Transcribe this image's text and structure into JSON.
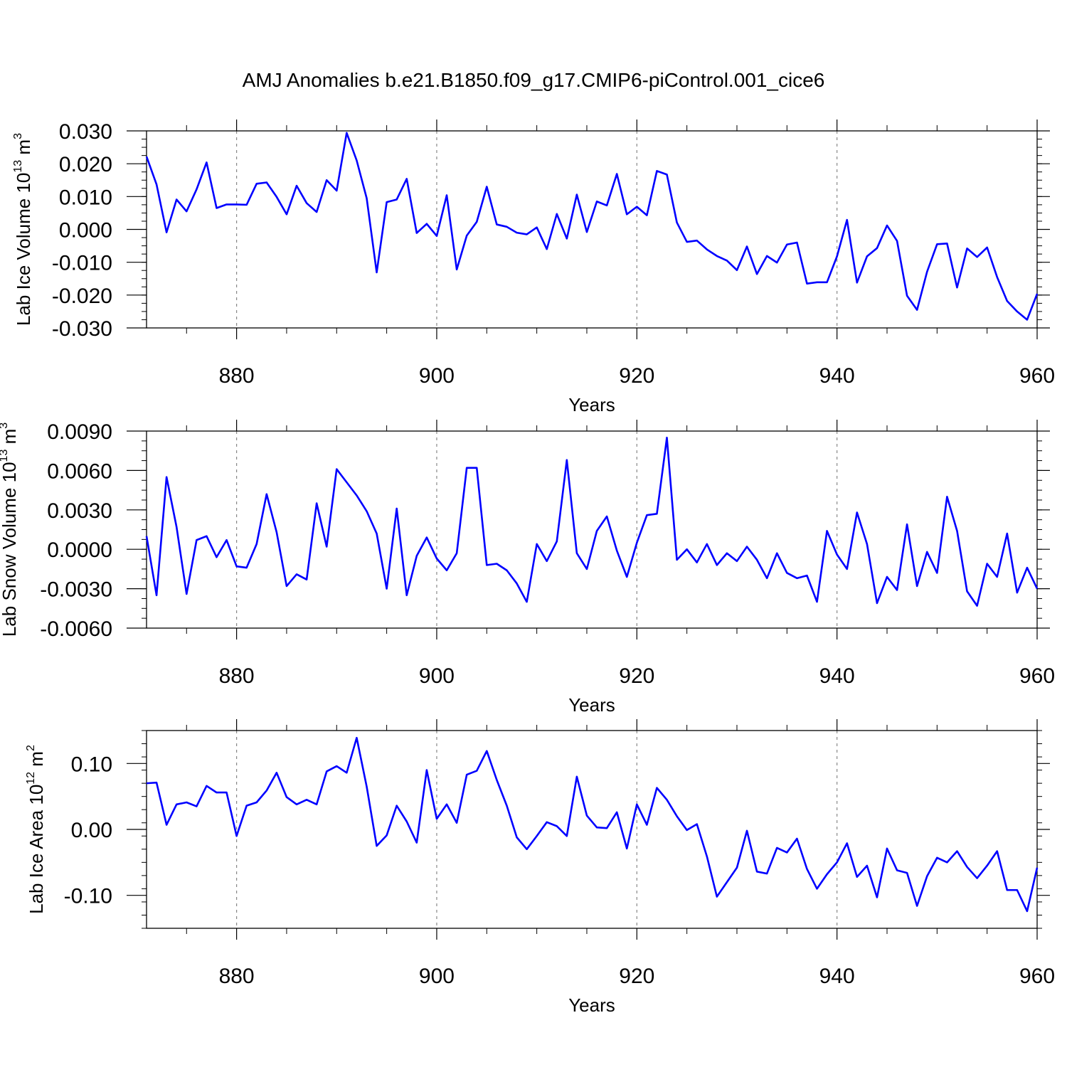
{
  "title": "AMJ Anomalies b.e21.B1850.f09_g17.CMIP6-piControl.001_cice6",
  "chart_data": [
    {
      "type": "line",
      "ylabel": {
        "pre": "Lab Ice Volume 10",
        "sup": "13",
        "mid": " m",
        "sup2": "3"
      },
      "xlabel": "Years",
      "xlim": [
        871,
        960
      ],
      "ylim": [
        -0.03,
        0.03
      ],
      "x_ticks": [
        880,
        900,
        920,
        940,
        960
      ],
      "x_tick_labels": [
        "880",
        "900",
        "920",
        "940",
        "960"
      ],
      "y_ticks": [
        -0.03,
        -0.02,
        -0.01,
        0.0,
        0.01,
        0.02,
        0.03
      ],
      "y_tick_labels": [
        "-0.030",
        "-0.020",
        "-0.010",
        "0.000",
        "0.010",
        "0.020",
        "0.030"
      ],
      "y_minor_step": 0.0025,
      "grid": "x-dashed",
      "color": "#0000ff",
      "series": [
        {
          "name": "Lab Ice Volume",
          "x_start": 871,
          "values": [
            0.0222,
            0.0137,
            -0.0009,
            0.0091,
            0.0055,
            0.0122,
            0.0204,
            0.0065,
            0.0076,
            0.0076,
            0.0075,
            0.0139,
            0.0143,
            0.0099,
            0.0046,
            0.0133,
            0.008,
            0.0053,
            0.015,
            0.0118,
            0.0294,
            0.021,
            0.0095,
            -0.0131,
            0.0083,
            0.0091,
            0.0154,
            -0.0011,
            0.0017,
            -0.002,
            0.0104,
            -0.0122,
            -0.0019,
            0.0023,
            0.013,
            0.0015,
            0.0008,
            -0.001,
            -0.0015,
            0.0006,
            -0.006,
            0.0047,
            -0.0028,
            0.0106,
            -0.0008,
            0.0085,
            0.0073,
            0.0169,
            0.0046,
            0.0069,
            0.0043,
            0.0178,
            0.0167,
            0.0021,
            -0.0038,
            -0.0034,
            -0.0061,
            -0.0081,
            -0.0095,
            -0.0124,
            -0.0052,
            -0.0136,
            -0.0081,
            -0.0101,
            -0.0046,
            -0.004,
            -0.0165,
            -0.0161,
            -0.0161,
            -0.0082,
            0.0029,
            -0.0162,
            -0.0082,
            -0.0057,
            0.0012,
            -0.0035,
            -0.0202,
            -0.0245,
            -0.0129,
            -0.0045,
            -0.0043,
            -0.0177,
            -0.0058,
            -0.0084,
            -0.0055,
            -0.0145,
            -0.0218,
            -0.025,
            -0.0275,
            -0.0196
          ]
        }
      ]
    },
    {
      "type": "line",
      "ylabel": {
        "pre": "Lab Snow Volume 10",
        "sup": "13",
        "mid": " m",
        "sup2": "3"
      },
      "xlabel": "Years",
      "xlim": [
        871,
        960
      ],
      "ylim": [
        -0.006,
        0.009
      ],
      "x_ticks": [
        880,
        900,
        920,
        940,
        960
      ],
      "x_tick_labels": [
        "880",
        "900",
        "920",
        "940",
        "960"
      ],
      "y_ticks": [
        -0.006,
        -0.003,
        0.0,
        0.003,
        0.006,
        0.009
      ],
      "y_tick_labels": [
        "-0.0060",
        "-0.0030",
        "0.0000",
        "0.0030",
        "0.0060",
        "0.0090"
      ],
      "y_minor_step": 0.00075,
      "grid": "x-dashed",
      "color": "#0000ff",
      "series": [
        {
          "name": "Lab Snow Volume",
          "x_start": 871,
          "values": [
            0.001,
            -0.0035,
            0.0055,
            0.0017,
            -0.0034,
            0.0007,
            0.001,
            -0.0006,
            0.0007,
            -0.0013,
            -0.0014,
            0.0004,
            0.0042,
            0.0013,
            -0.0028,
            -0.0019,
            -0.0023,
            0.0035,
            0.0002,
            0.0061,
            0.0051,
            0.0041,
            0.0029,
            0.0012,
            -0.003,
            0.0031,
            -0.0035,
            -0.0005,
            0.0009,
            -0.0007,
            -0.0016,
            -0.0003,
            0.0062,
            0.0062,
            -0.0012,
            -0.0011,
            -0.0016,
            -0.0026,
            -0.004,
            0.0004,
            -0.0009,
            0.0006,
            0.0068,
            -0.0003,
            -0.0015,
            0.0014,
            0.0025,
            -0.0001,
            -0.0021,
            0.0005,
            0.0026,
            0.0027,
            0.0085,
            -0.0008,
            0.0,
            -0.001,
            0.0004,
            -0.0012,
            -0.0003,
            -0.0009,
            0.0002,
            -0.0008,
            -0.0022,
            -0.0003,
            -0.0018,
            -0.0022,
            -0.002,
            -0.004,
            0.0014,
            -0.0004,
            -0.0015,
            0.0028,
            0.0004,
            -0.0041,
            -0.0021,
            -0.0031,
            0.0019,
            -0.0028,
            -0.0002,
            -0.0018,
            0.004,
            0.0014,
            -0.0032,
            -0.0043,
            -0.0011,
            -0.0021,
            0.0012,
            -0.0033,
            -0.0014,
            -0.003
          ]
        }
      ]
    },
    {
      "type": "line",
      "ylabel": {
        "pre": "Lab Ice Area 10",
        "sup": "12",
        "mid": " m",
        "sup2": "2"
      },
      "xlabel": "Years",
      "xlim": [
        871,
        960
      ],
      "ylim": [
        -0.15,
        0.15
      ],
      "x_ticks": [
        880,
        900,
        920,
        940,
        960
      ],
      "x_tick_labels": [
        "880",
        "900",
        "920",
        "940",
        "960"
      ],
      "y_ticks": [
        -0.1,
        0.0,
        0.1
      ],
      "y_tick_labels": [
        "-0.10",
        "0.00",
        "0.10"
      ],
      "y_minor_step": 0.02,
      "grid": "x-dashed",
      "color": "#0000ff",
      "series": [
        {
          "name": "Lab Ice Area",
          "x_start": 871,
          "values": [
            0.07,
            0.071,
            0.007,
            0.038,
            0.041,
            0.035,
            0.066,
            0.056,
            0.056,
            -0.01,
            0.036,
            0.041,
            0.059,
            0.086,
            0.049,
            0.038,
            0.045,
            0.038,
            0.088,
            0.096,
            0.086,
            0.139,
            0.065,
            -0.025,
            -0.009,
            0.036,
            0.012,
            -0.02,
            0.09,
            0.016,
            0.038,
            0.01,
            0.083,
            0.089,
            0.119,
            0.075,
            0.036,
            -0.012,
            -0.03,
            -0.01,
            0.011,
            0.005,
            -0.01,
            0.08,
            0.021,
            0.003,
            0.002,
            0.026,
            -0.029,
            0.038,
            0.007,
            0.063,
            0.045,
            0.02,
            -0.001,
            0.008,
            -0.041,
            -0.102,
            -0.08,
            -0.058,
            -0.002,
            -0.064,
            -0.067,
            -0.028,
            -0.035,
            -0.014,
            -0.06,
            -0.09,
            -0.068,
            -0.05,
            -0.021,
            -0.072,
            -0.055,
            -0.103,
            -0.029,
            -0.062,
            -0.066,
            -0.116,
            -0.071,
            -0.043,
            -0.05,
            -0.033,
            -0.057,
            -0.074,
            -0.055,
            -0.033,
            -0.092,
            -0.092,
            -0.124,
            -0.058
          ]
        }
      ]
    }
  ]
}
